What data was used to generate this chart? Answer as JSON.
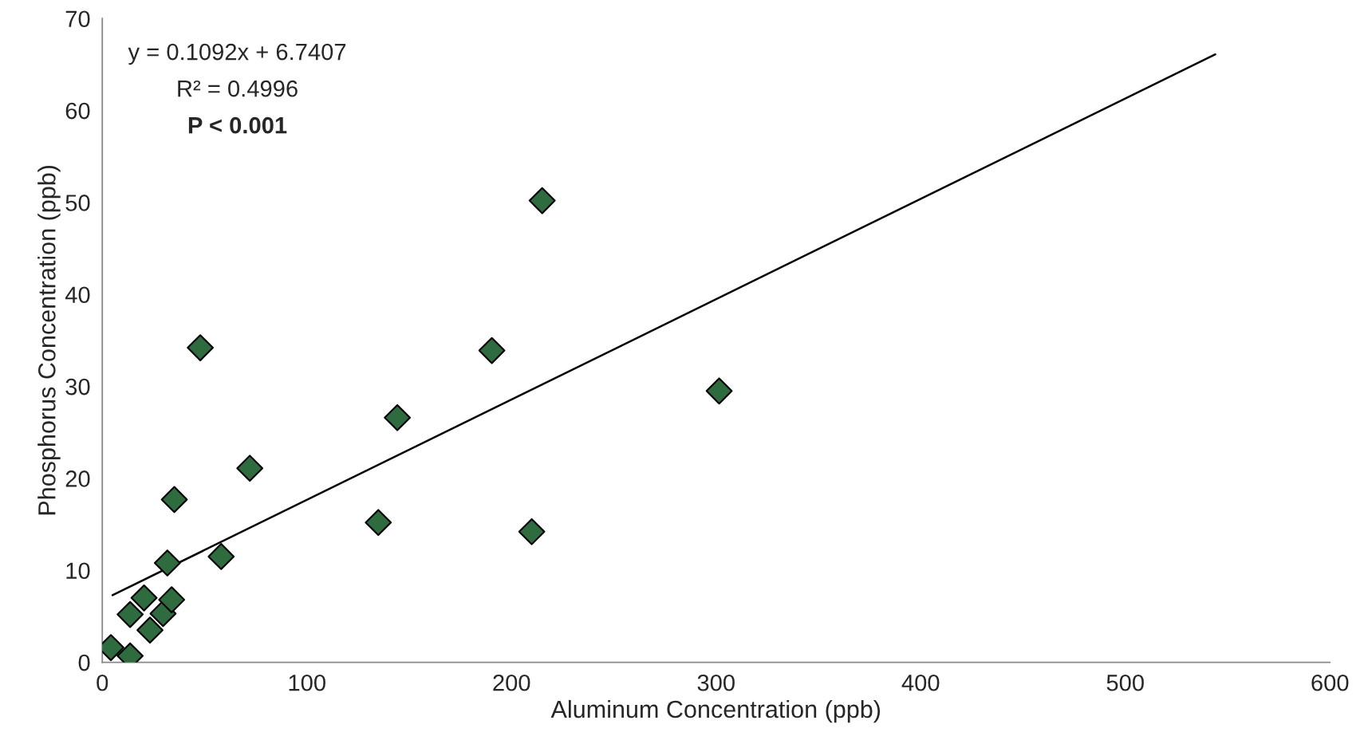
{
  "chart_data": {
    "type": "scatter",
    "xlabel": "Aluminum Concentration (ppb)",
    "ylabel": "Phosphorus Concentration (ppb)",
    "annotations": [
      "y = 0.1092x + 6.7407",
      "R² = 0.4996",
      "P < 0.001"
    ],
    "xlim": [
      0,
      600
    ],
    "xticks": [
      0,
      100,
      200,
      300,
      400,
      500,
      600
    ],
    "ylim": [
      0,
      70
    ],
    "yticks": [
      0,
      10,
      20,
      30,
      40,
      50,
      60,
      70
    ],
    "grid": false,
    "legend": false,
    "marker": "diamond",
    "series": [
      {
        "color": "#2e6b3e",
        "x": [
          4.2,
          13.6,
          13.6,
          20.4,
          23.3,
          29.7,
          31.8,
          33.9,
          35.2,
          47.9,
          58.1,
          72.1,
          134.9,
          144.2,
          190.4,
          209.9,
          215.0,
          301.5
        ],
        "values": [
          1.6,
          0.7,
          5.2,
          7.0,
          3.5,
          5.3,
          10.8,
          6.8,
          17.7,
          34.2,
          11.5,
          21.1,
          15.2,
          26.6,
          33.9,
          14.2,
          50.2,
          29.5
        ]
      },
      {
        "type": "line",
        "color": "#000000",
        "line_style": "solid",
        "marker": "none",
        "x": [
          5,
          544
        ],
        "values": [
          7.3,
          66.1
        ]
      }
    ]
  }
}
